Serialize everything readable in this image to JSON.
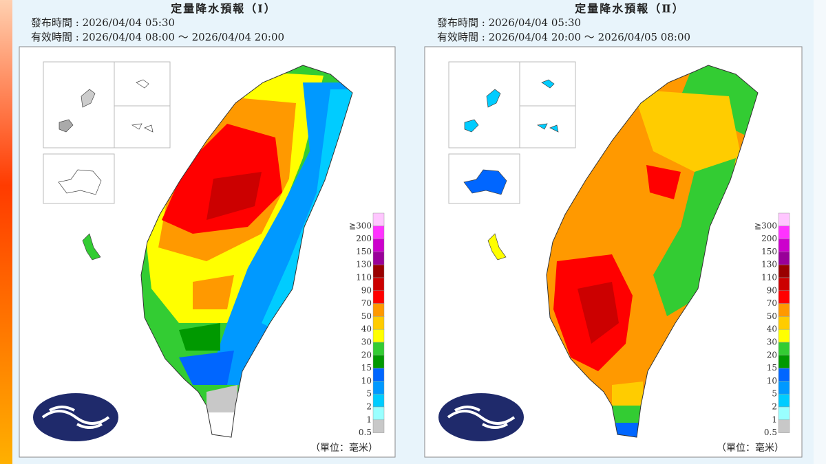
{
  "panels": [
    {
      "title": "定量降水預報（Ⅰ）",
      "issued": "發布時間 : 2026/04/04 05:30",
      "valid": "有效時間 : 2026/04/04 08:00 ～ 2026/04/04 20:00",
      "unit": "（單位：毫米）"
    },
    {
      "title": "定量降水預報（Ⅱ）",
      "issued": "發布時間 : 2026/04/04 05:30",
      "valid": "有效時間 : 2026/04/04 20:00 ～ 2026/04/05 08:00",
      "unit": "（單位：毫米）"
    }
  ],
  "legend": {
    "labels": [
      "≧300",
      "200",
      "150",
      "130",
      "110",
      "90",
      "70",
      "50",
      "40",
      "30",
      "20",
      "15",
      "10",
      "5",
      "2",
      "1",
      "0.5"
    ],
    "colors": [
      "#ffc6ff",
      "#ff33ff",
      "#cc00cc",
      "#990099",
      "#990000",
      "#cc0000",
      "#ff0000",
      "#ff9900",
      "#ffcc00",
      "#ffff00",
      "#33cc33",
      "#009900",
      "#0066ff",
      "#0099ff",
      "#00ccff",
      "#99ffff",
      "#c8c8c8"
    ]
  }
}
